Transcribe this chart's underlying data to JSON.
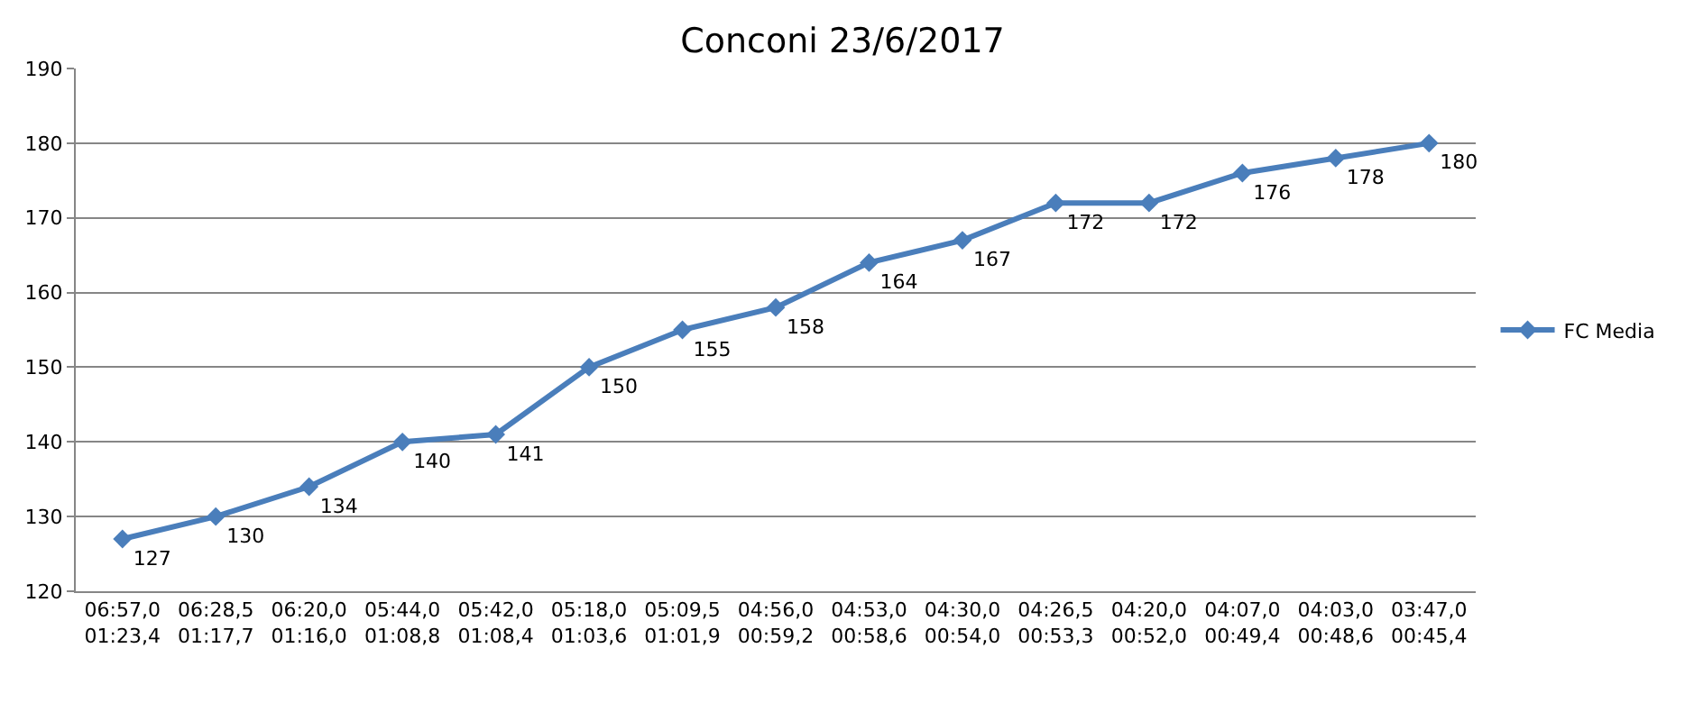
{
  "chart_data": {
    "type": "line",
    "title": "Conconi 23/6/2017",
    "categories": [
      "06:57,0\n01:23,4",
      "06:28,5\n01:17,7",
      "06:20,0\n01:16,0",
      "05:44,0\n01:08,8",
      "05:42,0\n01:08,4",
      "05:18,0\n01:03,6",
      "05:09,5\n01:01,9",
      "04:56,0\n00:59,2",
      "04:53,0\n00:58,6",
      "04:30,0\n00:54,0",
      "04:26,5\n00:53,3",
      "04:20,0\n00:52,0",
      "04:07,0\n00:49,4",
      "04:03,0\n00:48,6",
      "03:47,0\n00:45,4"
    ],
    "series": [
      {
        "name": "FC Media",
        "color": "#4a7ebb",
        "values": [
          127,
          130,
          134,
          140,
          141,
          150,
          155,
          158,
          164,
          167,
          172,
          172,
          176,
          178,
          180
        ]
      }
    ],
    "ylim": [
      120,
      190
    ],
    "yticks": [
      120,
      130,
      140,
      150,
      160,
      170,
      180,
      190
    ],
    "grid": "y",
    "legend": "right",
    "marker": "diamond",
    "line_style": "solid",
    "data_labels": true
  }
}
